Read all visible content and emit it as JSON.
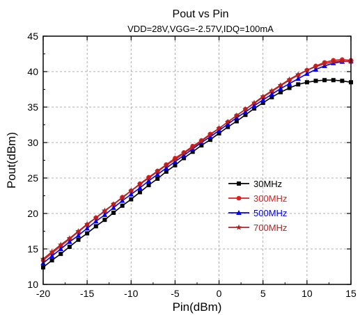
{
  "chart_data": {
    "type": "line",
    "title": "Pout vs  Pin",
    "subtitle": "VDD=28V,VGG=-2.57V,IDQ=100mA",
    "xlabel": "Pin(dBm)",
    "ylabel": "Pout(dBm)",
    "xlim": [
      -20,
      15
    ],
    "ylim": [
      10,
      45
    ],
    "xticks": [
      -20,
      -15,
      -10,
      -5,
      0,
      5,
      10,
      15
    ],
    "yticks": [
      10,
      15,
      20,
      25,
      30,
      35,
      40,
      45
    ],
    "grid": true,
    "legend_position": "center-right",
    "x": [
      -20,
      -19,
      -18,
      -17,
      -16,
      -15,
      -14,
      -13,
      -12,
      -11,
      -10,
      -9,
      -8,
      -7,
      -6,
      -5,
      -4,
      -3,
      -2,
      -1,
      0,
      1,
      2,
      3,
      4,
      5,
      6,
      7,
      8,
      9,
      10,
      11,
      12,
      13,
      14,
      15
    ],
    "series": [
      {
        "name": "30MHz",
        "color": "#000000",
        "marker": "square",
        "values": [
          12.4,
          13.4,
          14.3,
          15.3,
          16.3,
          17.2,
          18.2,
          19.1,
          20.1,
          21.1,
          22.0,
          23.0,
          24.0,
          24.9,
          25.9,
          26.8,
          27.8,
          28.7,
          29.6,
          30.4,
          31.3,
          32.2,
          33.0,
          33.9,
          34.8,
          35.6,
          36.4,
          37.1,
          37.7,
          38.2,
          38.5,
          38.7,
          38.8,
          38.8,
          38.7,
          38.5
        ]
      },
      {
        "name": "300MHz",
        "color": "#e41a1c",
        "marker": "circle",
        "values": [
          13.4,
          14.4,
          15.4,
          16.4,
          17.4,
          18.4,
          19.4,
          20.3,
          21.3,
          22.3,
          23.2,
          24.2,
          25.1,
          26.0,
          26.9,
          27.8,
          28.6,
          29.5,
          30.3,
          31.2,
          32.0,
          32.9,
          33.8,
          34.7,
          35.5,
          36.4,
          37.2,
          38.0,
          38.8,
          39.5,
          40.2,
          40.8,
          41.3,
          41.6,
          41.7,
          41.6
        ]
      },
      {
        "name": "500MHz",
        "color": "#0000ee",
        "marker": "triangle",
        "values": [
          13.0,
          14.0,
          15.0,
          16.0,
          16.9,
          17.9,
          18.9,
          19.8,
          20.8,
          21.8,
          22.7,
          23.6,
          24.6,
          25.5,
          26.4,
          27.3,
          28.2,
          29.1,
          30.0,
          30.8,
          31.7,
          32.6,
          33.5,
          34.3,
          35.2,
          36.0,
          36.8,
          37.6,
          38.3,
          39.0,
          39.7,
          40.3,
          40.8,
          41.2,
          41.4,
          41.5
        ]
      },
      {
        "name": "700MHz",
        "color": "#b22222",
        "marker": "star",
        "values": [
          13.6,
          14.6,
          15.6,
          16.5,
          17.5,
          18.5,
          19.4,
          20.4,
          21.3,
          22.2,
          23.2,
          24.1,
          25.0,
          25.9,
          26.8,
          27.6,
          28.5,
          29.3,
          30.2,
          31.1,
          32.0,
          32.9,
          33.8,
          34.7,
          35.6,
          36.5,
          37.3,
          38.1,
          38.9,
          39.6,
          40.2,
          40.7,
          41.1,
          41.4,
          41.5,
          41.4
        ]
      }
    ]
  }
}
